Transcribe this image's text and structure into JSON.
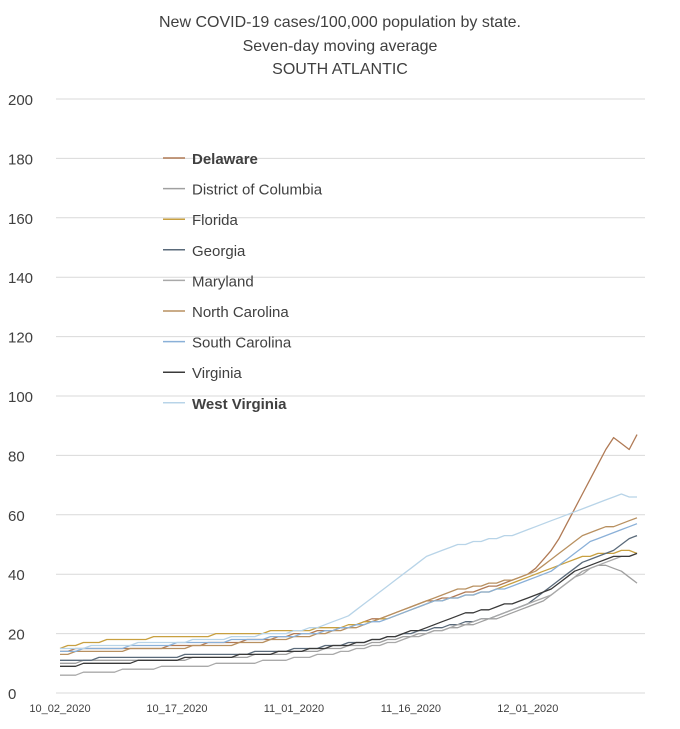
{
  "chart_data": {
    "type": "line",
    "title_lines": [
      "New COVID-19 cases/100,000 population by state.",
      "Seven-day moving average",
      "SOUTH ATLANTIC"
    ],
    "xlabel": "",
    "ylabel": "",
    "ylim": [
      0,
      200
    ],
    "yticks": [
      0,
      20,
      40,
      60,
      80,
      100,
      120,
      140,
      160,
      180,
      200
    ],
    "x_tick_labels": [
      "10_02_2020",
      "10_17_2020",
      "11_01_2020",
      "11_16_2020",
      "12_01_2020"
    ],
    "x_tick_offsets": [
      0,
      15,
      30,
      45,
      60
    ],
    "grid": "horizontal",
    "legend_position": "upper-left inside",
    "series": [
      {
        "name": "Delaware",
        "color": "#b07a55",
        "bold": true,
        "values": [
          14,
          14,
          15,
          15,
          15,
          15,
          15,
          15,
          15,
          15,
          15,
          15,
          15,
          15,
          16,
          16,
          16,
          16,
          16,
          17,
          17,
          17,
          17,
          17,
          18,
          18,
          18,
          18,
          19,
          19,
          20,
          20,
          20,
          21,
          21,
          21,
          22,
          22,
          23,
          24,
          25,
          25,
          26,
          27,
          28,
          29,
          30,
          31,
          31,
          32,
          32,
          33,
          34,
          34,
          35,
          36,
          36,
          37,
          38,
          39,
          40,
          42,
          45,
          48,
          52,
          57,
          62,
          67,
          72,
          77,
          82,
          86,
          84,
          82,
          87
        ]
      },
      {
        "name": "District of Columbia",
        "color": "#a0a0a0",
        "bold": false,
        "values": [
          10,
          10,
          10,
          11,
          11,
          11,
          11,
          11,
          11,
          11,
          11,
          11,
          11,
          11,
          11,
          11,
          11,
          12,
          12,
          12,
          12,
          12,
          12,
          12,
          12,
          13,
          13,
          13,
          13,
          13,
          14,
          14,
          14,
          14,
          15,
          15,
          15,
          16,
          16,
          16,
          17,
          17,
          18,
          18,
          19,
          19,
          20,
          20,
          21,
          21,
          22,
          22,
          23,
          23,
          24,
          25,
          25,
          26,
          27,
          28,
          29,
          30,
          31,
          33,
          35,
          37,
          39,
          41,
          42,
          43,
          43,
          42,
          41,
          39,
          37
        ]
      },
      {
        "name": "Florida",
        "color": "#c8a040",
        "bold": false,
        "values": [
          15,
          16,
          16,
          17,
          17,
          17,
          18,
          18,
          18,
          18,
          18,
          18,
          19,
          19,
          19,
          19,
          19,
          19,
          19,
          19,
          20,
          20,
          20,
          20,
          20,
          20,
          20,
          21,
          21,
          21,
          21,
          21,
          21,
          22,
          22,
          22,
          22,
          23,
          23,
          24,
          24,
          25,
          25,
          26,
          27,
          28,
          29,
          30,
          31,
          31,
          32,
          32,
          33,
          33,
          34,
          34,
          35,
          36,
          37,
          38,
          39,
          40,
          41,
          42,
          43,
          44,
          45,
          46,
          46,
          47,
          47,
          47,
          48,
          48,
          47
        ]
      },
      {
        "name": "Georgia",
        "color": "#5a6a7a",
        "bold": false,
        "values": [
          11,
          11,
          11,
          11,
          11,
          12,
          12,
          12,
          12,
          12,
          12,
          12,
          12,
          12,
          12,
          12,
          13,
          13,
          13,
          13,
          13,
          13,
          13,
          13,
          13,
          14,
          14,
          14,
          14,
          14,
          15,
          15,
          15,
          15,
          16,
          16,
          16,
          17,
          17,
          17,
          18,
          18,
          19,
          19,
          20,
          20,
          21,
          21,
          22,
          22,
          23,
          23,
          24,
          24,
          25,
          25,
          26,
          27,
          28,
          29,
          30,
          32,
          34,
          36,
          38,
          40,
          42,
          44,
          45,
          46,
          47,
          48,
          50,
          52,
          53
        ]
      },
      {
        "name": "Maryland",
        "color": "#a9a9a9",
        "bold": false,
        "values": [
          6,
          6,
          6,
          7,
          7,
          7,
          7,
          7,
          8,
          8,
          8,
          8,
          8,
          9,
          9,
          9,
          9,
          9,
          9,
          9,
          10,
          10,
          10,
          10,
          10,
          10,
          11,
          11,
          11,
          11,
          12,
          12,
          12,
          13,
          13,
          13,
          14,
          14,
          15,
          15,
          16,
          16,
          17,
          17,
          18,
          19,
          19,
          20,
          21,
          21,
          22,
          23,
          23,
          24,
          25,
          25,
          26,
          27,
          28,
          29,
          30,
          31,
          32,
          33,
          35,
          37,
          39,
          40,
          42,
          43,
          44,
          45,
          46,
          46,
          47
        ]
      },
      {
        "name": "North Carolina",
        "color": "#b89060",
        "bold": false,
        "values": [
          13,
          13,
          14,
          14,
          14,
          14,
          14,
          14,
          14,
          15,
          15,
          15,
          15,
          15,
          15,
          15,
          15,
          16,
          16,
          16,
          16,
          16,
          16,
          17,
          17,
          17,
          17,
          18,
          18,
          18,
          19,
          19,
          19,
          20,
          20,
          21,
          21,
          22,
          22,
          23,
          24,
          25,
          26,
          27,
          28,
          29,
          30,
          31,
          32,
          33,
          34,
          35,
          35,
          36,
          36,
          37,
          37,
          38,
          38,
          39,
          40,
          41,
          43,
          45,
          47,
          49,
          51,
          53,
          54,
          55,
          56,
          56,
          57,
          58,
          59
        ]
      },
      {
        "name": "South Carolina",
        "color": "#8ab0d8",
        "bold": false,
        "values": [
          14,
          14,
          14,
          15,
          15,
          15,
          15,
          15,
          15,
          16,
          16,
          16,
          16,
          16,
          16,
          17,
          17,
          17,
          17,
          17,
          17,
          17,
          18,
          18,
          18,
          18,
          18,
          19,
          19,
          19,
          19,
          20,
          20,
          20,
          21,
          21,
          22,
          22,
          23,
          23,
          24,
          24,
          25,
          26,
          27,
          28,
          29,
          30,
          31,
          31,
          32,
          32,
          33,
          33,
          34,
          34,
          35,
          35,
          36,
          37,
          38,
          39,
          40,
          41,
          43,
          45,
          47,
          49,
          51,
          52,
          53,
          54,
          55,
          56,
          57
        ]
      },
      {
        "name": "Virginia",
        "color": "#3a3a3a",
        "bold": false,
        "values": [
          9,
          9,
          9,
          10,
          10,
          10,
          10,
          10,
          10,
          10,
          11,
          11,
          11,
          11,
          11,
          11,
          12,
          12,
          12,
          12,
          12,
          12,
          12,
          13,
          13,
          13,
          13,
          13,
          14,
          14,
          14,
          14,
          15,
          15,
          15,
          16,
          16,
          16,
          17,
          17,
          18,
          18,
          19,
          19,
          20,
          21,
          21,
          22,
          23,
          24,
          25,
          26,
          27,
          27,
          28,
          28,
          29,
          30,
          30,
          31,
          32,
          33,
          34,
          35,
          37,
          39,
          41,
          42,
          43,
          44,
          45,
          46,
          46,
          46,
          47
        ]
      },
      {
        "name": "West Virginia",
        "color": "#b8d4e8",
        "bold": true,
        "values": [
          15,
          15,
          15,
          15,
          16,
          16,
          16,
          16,
          16,
          16,
          17,
          17,
          17,
          17,
          17,
          17,
          17,
          18,
          18,
          18,
          18,
          18,
          19,
          19,
          19,
          19,
          20,
          20,
          20,
          20,
          21,
          21,
          22,
          22,
          23,
          24,
          25,
          26,
          28,
          30,
          32,
          34,
          36,
          38,
          40,
          42,
          44,
          46,
          47,
          48,
          49,
          50,
          50,
          51,
          51,
          52,
          52,
          53,
          53,
          54,
          55,
          56,
          57,
          58,
          59,
          60,
          61,
          62,
          63,
          64,
          65,
          66,
          67,
          66,
          66
        ]
      }
    ]
  }
}
